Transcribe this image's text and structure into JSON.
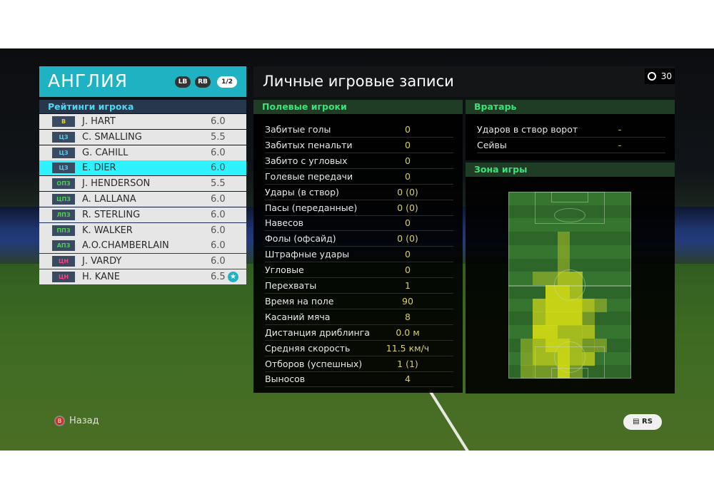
{
  "team": {
    "name": "АНГЛИЯ",
    "lb": "LB",
    "rb": "RB",
    "page": "1/2",
    "ratings_label": "Рейтинги игрока"
  },
  "players": [
    {
      "pos": "В",
      "pos_color": "#e8d030",
      "name": "J. HART",
      "rating": "6.0"
    },
    {
      "pos": "ЦЗ",
      "pos_color": "#5cc8e8",
      "name": "C. SMALLING",
      "rating": "5.5"
    },
    {
      "pos": "ЦЗ",
      "pos_color": "#5cc8e8",
      "name": "G. CAHILL",
      "rating": "6.0"
    },
    {
      "pos": "ЦЗ",
      "pos_color": "#5cc8e8",
      "name": "E. DIER",
      "rating": "6.0",
      "selected": true
    },
    {
      "pos": "ОПЗ",
      "pos_color": "#50d050",
      "name": "J. HENDERSON",
      "rating": "5.5"
    },
    {
      "pos": "ЦПЗ",
      "pos_color": "#50d050",
      "name": "A. LALLANA",
      "rating": "6.0"
    },
    {
      "pos": "ЛПЗ",
      "pos_color": "#50d050",
      "name": "R. STERLING",
      "rating": "6.0"
    },
    {
      "pos": "ППЗ",
      "pos_color": "#50d050",
      "name": "K. WALKER",
      "rating": "6.0"
    },
    {
      "pos": "АПЗ",
      "pos_color": "#50d050",
      "name": "A.O.CHAMBERLAIN",
      "rating": "6.0"
    },
    {
      "pos": "ЦН",
      "pos_color": "#ff4080",
      "name": "J. VARDY",
      "rating": "6.0"
    },
    {
      "pos": "ЦН",
      "pos_color": "#ff4080",
      "name": "H. KANE",
      "rating": "6.5",
      "star": true
    }
  ],
  "header": {
    "title": "Личные игровые записи",
    "timer": "30"
  },
  "field": {
    "label": "Полевые игроки",
    "stats": [
      {
        "label": "Забитые голы",
        "value": "0"
      },
      {
        "label": "Забитых пенальти",
        "value": "0"
      },
      {
        "label": "Забито с угловых",
        "value": "0"
      },
      {
        "label": "Голевые передачи",
        "value": "0"
      },
      {
        "label": "Удары (в створ)",
        "value": "0 (0)"
      },
      {
        "label": "Пасы (переданные)",
        "value": "0 (0)"
      },
      {
        "label": "Навесов",
        "value": "0"
      },
      {
        "label": "Фолы (офсайд)",
        "value": "0 (0)"
      },
      {
        "label": "Штрафные удары",
        "value": "0"
      },
      {
        "label": "Угловые",
        "value": "0"
      },
      {
        "label": "Перехваты",
        "value": "1"
      },
      {
        "label": "Время на поле",
        "value": "90"
      },
      {
        "label": "Касаний мяча",
        "value": "8"
      },
      {
        "label": "Дистанция дриблинга",
        "value": "0.0 м"
      },
      {
        "label": "Средняя скорость",
        "value": "11.5 км/ч"
      },
      {
        "label": "Отборов (успешных)",
        "value": "1 (1)"
      },
      {
        "label": "Выносов",
        "value": "4"
      }
    ]
  },
  "keeper": {
    "label": "Вратарь",
    "stats": [
      {
        "label": "Ударов в створ ворот",
        "value": "-"
      },
      {
        "label": "Сейвы",
        "value": "-"
      }
    ]
  },
  "zone": {
    "label": "Зона игры",
    "heatmap": [
      [
        0,
        0,
        0,
        0,
        0,
        0,
        0,
        0,
        0,
        0
      ],
      [
        0,
        0,
        0,
        0,
        0,
        0,
        0,
        0,
        0,
        0
      ],
      [
        0,
        0,
        0,
        0,
        0,
        0,
        0,
        0,
        0,
        0
      ],
      [
        0,
        0,
        0,
        0,
        1,
        0,
        0,
        0,
        0,
        0
      ],
      [
        0,
        0,
        0,
        0,
        1,
        0,
        0,
        0,
        0,
        0
      ],
      [
        0,
        0,
        0,
        0,
        1,
        0,
        0,
        0,
        0,
        0
      ],
      [
        0,
        0,
        1,
        1,
        2,
        2,
        0,
        0,
        0,
        0
      ],
      [
        0,
        0,
        0,
        3,
        3,
        2,
        0,
        0,
        0,
        0
      ],
      [
        0,
        0,
        2,
        3,
        3,
        3,
        2,
        1,
        0,
        0
      ],
      [
        0,
        0,
        2,
        3,
        3,
        3,
        1,
        0,
        0,
        0
      ],
      [
        0,
        0,
        3,
        3,
        2,
        2,
        2,
        0,
        0,
        0
      ],
      [
        0,
        1,
        2,
        3,
        3,
        2,
        1,
        1,
        0,
        0
      ],
      [
        0,
        1,
        2,
        2,
        3,
        2,
        2,
        0,
        0,
        0
      ],
      [
        0,
        1,
        1,
        1,
        3,
        1,
        0,
        0,
        0,
        0
      ]
    ]
  },
  "footer": {
    "back_button": "B",
    "back_label": "Назад",
    "chat_icon": "chat-icon",
    "rs_label": "RS"
  }
}
